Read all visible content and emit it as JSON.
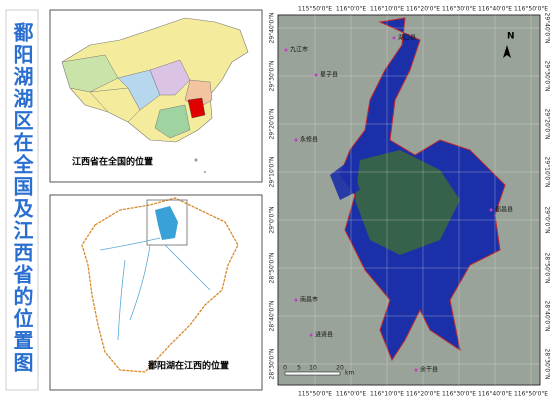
{
  "title": "鄱阳湖湖区在全国及江西省的位置图",
  "china_map": {
    "caption": "江西省在全国的位置"
  },
  "jiangxi_map": {
    "caption": "鄱阳湖在江西的位置"
  },
  "lake_map": {
    "lon_labels": [
      "115°50'0\"E",
      "116°0'0\"E",
      "116°10'0\"E",
      "116°20'0\"E",
      "116°30'0\"E",
      "116°40'0\"E",
      "116°50'0\"E"
    ],
    "lat_labels": [
      "29°40'0\"N",
      "29°30'0\"N",
      "29°20'0\"N",
      "29°10'0\"N",
      "29°0'0\"N",
      "28°50'0\"N",
      "28°40'0\"N",
      "28°30'0\"N"
    ],
    "places": [
      "九江市",
      "湖口县",
      "星子县",
      "永修县",
      "都昌县",
      "南昌市",
      "进贤县",
      "余干县"
    ],
    "north": "N",
    "scale_labels": [
      "0",
      "5",
      "10",
      "20"
    ],
    "scale_unit": "km"
  }
}
